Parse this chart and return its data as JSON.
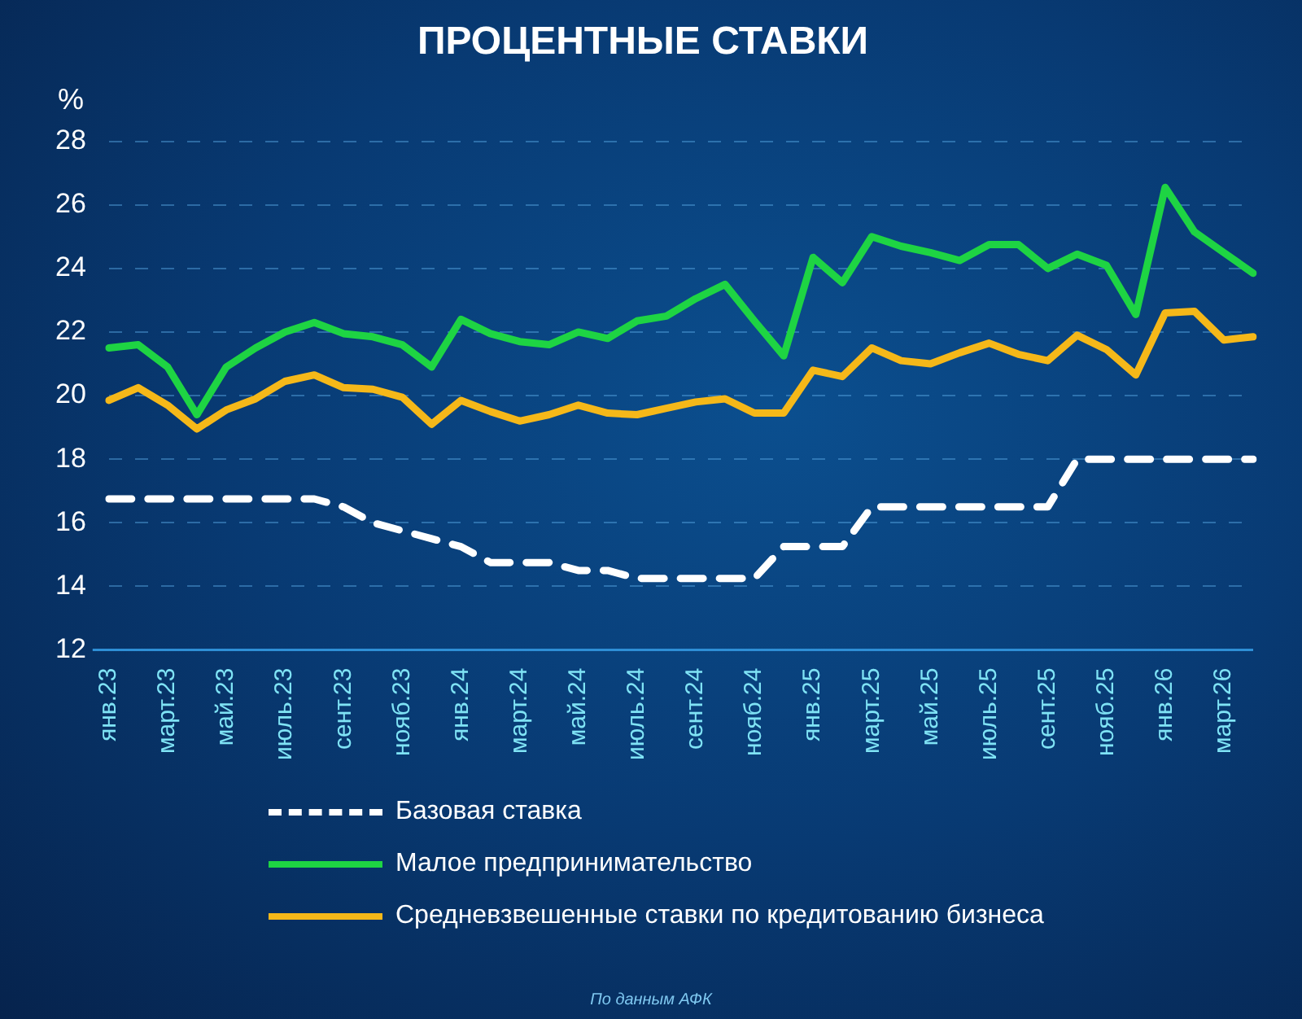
{
  "chart_data": {
    "type": "line",
    "title": "ПРОЦЕНТНЫЕ СТАВКИ",
    "ylabel": "%",
    "categories": [
      "янв.23",
      null,
      "март.23",
      null,
      "май.23",
      null,
      "июль.23",
      null,
      "сент.23",
      null,
      "нояб.23",
      null,
      "янв.24",
      null,
      "март.24",
      null,
      "май.24",
      null,
      "июль.24",
      null,
      "сент.24",
      null,
      "нояб.24",
      null,
      "янв.25",
      null,
      "март.25",
      null,
      "май.25",
      null,
      "июль.25",
      null,
      "сент.25",
      null,
      "нояб.25",
      null,
      "янв.26",
      null,
      "март.26",
      null
    ],
    "series": [
      {
        "name": "Базовая ставка",
        "color": "#ffffff",
        "line_style": "dashed",
        "values": [
          16.75,
          16.75,
          16.75,
          16.75,
          16.75,
          16.75,
          16.75,
          16.75,
          16.5,
          16,
          15.75,
          15.5,
          15.25,
          14.75,
          14.75,
          14.75,
          14.5,
          14.5,
          14.25,
          14.25,
          14.25,
          14.25,
          14.25,
          15.25,
          15.25,
          15.25,
          16.5,
          16.5,
          16.5,
          16.5,
          16.5,
          16.5,
          16.5,
          18,
          18,
          18,
          18,
          18,
          18,
          18
        ]
      },
      {
        "name": "Малое предпринимательство",
        "color": "#1ed443",
        "line_style": "solid",
        "values": [
          21.5,
          21.6,
          20.9,
          19.4,
          20.9,
          21.5,
          22,
          22.3,
          21.95,
          21.85,
          21.6,
          20.9,
          22.4,
          21.95,
          21.7,
          21.6,
          22,
          21.8,
          22.35,
          22.5,
          23.05,
          23.5,
          22.35,
          21.25,
          24.35,
          23.55,
          25,
          24.7,
          24.5,
          24.25,
          24.75,
          24.75,
          24,
          24.45,
          24.1,
          22.55,
          26.55,
          25.15,
          24.5,
          23.85
        ]
      },
      {
        "name": "Средневзвешенные ставки по кредитованию бизнеса",
        "color": "#f5b819",
        "line_style": "solid",
        "values": [
          19.85,
          20.25,
          19.7,
          18.95,
          19.55,
          19.9,
          20.45,
          20.65,
          20.25,
          20.2,
          19.95,
          19.1,
          19.85,
          19.5,
          19.2,
          19.4,
          19.7,
          19.45,
          19.4,
          19.6,
          19.8,
          19.9,
          19.45,
          19.45,
          20.8,
          20.6,
          21.5,
          21.1,
          21,
          21.35,
          21.65,
          21.3,
          21.1,
          21.9,
          21.45,
          20.65,
          22.6,
          22.65,
          21.75,
          21.85
        ]
      }
    ],
    "ylim": [
      12,
      28
    ],
    "yticks": [
      12,
      14,
      16,
      18,
      20,
      22,
      24,
      26,
      28
    ],
    "grid": "y",
    "legend": "bottom",
    "marker": "none",
    "annotations": [
      "По данным АФК"
    ]
  }
}
